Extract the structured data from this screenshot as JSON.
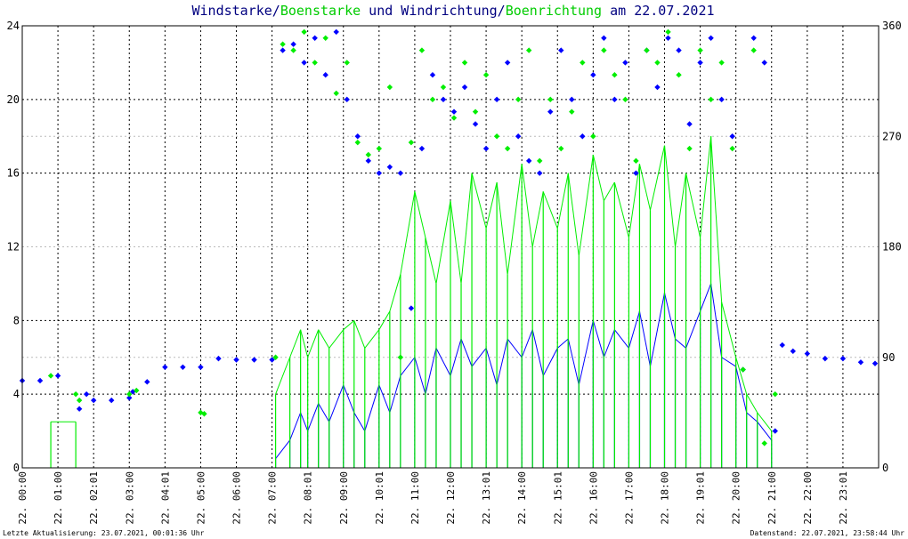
{
  "title": {
    "windstarke": "Windstarke",
    "sep1": "/",
    "boenstarke": "Boenstarke",
    "und": " und ",
    "windrichtung": "Windrichtung",
    "sep2": "/",
    "boenrichtung": "Boenrichtung",
    "am": " am 22.07.2021"
  },
  "footer": {
    "left": "Letzte Aktualisierung: 23.07.2021, 00:01:36 Uhr",
    "right": "Datenstand: 22.07.2021, 23:58:44 Uhr"
  },
  "colors": {
    "wind": "#0000ff",
    "gust": "#00ee00",
    "title_dark": "#000080",
    "title_green": "#00cc00",
    "grid": "#000000",
    "grid_light": "#cccccc"
  },
  "chart_data": {
    "type": "line",
    "y_left": {
      "min": 0,
      "max": 24,
      "ticks": [
        "0",
        "4",
        "8",
        "12",
        "16",
        "20",
        "24"
      ]
    },
    "y_right": {
      "min": 0,
      "max": 360,
      "ticks": [
        "0",
        "90",
        "180",
        "270",
        "360"
      ]
    },
    "x_ticks": [
      "22. 00:00",
      "22. 01:00",
      "22. 02:01",
      "22. 03:00",
      "22. 04:01",
      "22. 05:00",
      "22. 06:00",
      "22. 07:00",
      "22. 08:01",
      "22. 09:00",
      "22. 10:01",
      "22. 11:00",
      "22. 12:00",
      "22. 13:01",
      "22. 14:00",
      "22. 15:01",
      "22. 16:00",
      "22. 17:00",
      "22. 18:00",
      "22. 19:01",
      "22. 20:00",
      "22. 21:00",
      "22. 22:00",
      "22. 23:01"
    ],
    "x_range_hours": [
      0,
      24
    ],
    "series": [
      {
        "name": "Windstarke",
        "kind": "line",
        "x": [
          7.1,
          7.5,
          7.8,
          8.0,
          8.3,
          8.6,
          9.0,
          9.3,
          9.6,
          10.0,
          10.3,
          10.6,
          11.0,
          11.3,
          11.6,
          12.0,
          12.3,
          12.6,
          13.0,
          13.3,
          13.6,
          14.0,
          14.3,
          14.6,
          15.0,
          15.3,
          15.6,
          16.0,
          16.3,
          16.6,
          17.0,
          17.3,
          17.6,
          18.0,
          18.3,
          18.6,
          19.0,
          19.3,
          19.6,
          20.0,
          20.3,
          20.6,
          21.0
        ],
        "y": [
          0.5,
          1.5,
          3.0,
          2.0,
          3.5,
          2.5,
          4.5,
          3.0,
          2.0,
          4.5,
          3.0,
          5.0,
          6.0,
          4.0,
          6.5,
          5.0,
          7.0,
          5.5,
          6.5,
          4.5,
          7.0,
          6.0,
          7.5,
          5.0,
          6.5,
          7.0,
          4.5,
          8.0,
          6.0,
          7.5,
          6.5,
          8.5,
          5.5,
          9.5,
          7.0,
          6.5,
          8.5,
          10.0,
          6.0,
          5.5,
          3.0,
          2.5,
          1.5
        ]
      },
      {
        "name": "Boenstarke",
        "kind": "line",
        "x": [
          0.8,
          1.5,
          7.1,
          7.5,
          7.8,
          8.0,
          8.3,
          8.6,
          9.0,
          9.3,
          9.6,
          10.0,
          10.3,
          10.6,
          11.0,
          11.3,
          11.6,
          12.0,
          12.3,
          12.6,
          13.0,
          13.3,
          13.6,
          14.0,
          14.3,
          14.6,
          15.0,
          15.3,
          15.6,
          16.0,
          16.3,
          16.6,
          17.0,
          17.3,
          17.6,
          18.0,
          18.3,
          18.6,
          19.0,
          19.3,
          19.6,
          20.0,
          20.3,
          20.6,
          21.0
        ],
        "y": [
          2.5,
          2.5,
          4.0,
          6.0,
          7.5,
          6.0,
          7.5,
          6.5,
          7.5,
          8.0,
          6.5,
          7.5,
          8.5,
          10.5,
          15.0,
          12.5,
          10.0,
          14.5,
          10.0,
          16.0,
          13.0,
          15.5,
          10.5,
          16.5,
          12.0,
          15.0,
          13.0,
          16.0,
          11.5,
          17.0,
          14.5,
          15.5,
          12.5,
          16.5,
          14.0,
          17.5,
          12.0,
          16.0,
          12.5,
          18.0,
          9.0,
          6.0,
          4.0,
          3.0,
          2.0
        ]
      },
      {
        "name": "Windrichtung",
        "kind": "points",
        "unit": "deg",
        "x": [
          0.0,
          0.5,
          1.0,
          1.6,
          1.8,
          2.0,
          2.5,
          3.0,
          3.1,
          3.5,
          4.0,
          4.5,
          5.0,
          5.5,
          6.0,
          6.5,
          7.0,
          7.3,
          7.6,
          7.9,
          8.2,
          8.5,
          8.8,
          9.1,
          9.4,
          9.7,
          10.0,
          10.3,
          10.6,
          10.9,
          11.2,
          11.5,
          11.8,
          12.1,
          12.4,
          12.7,
          13.0,
          13.3,
          13.6,
          13.9,
          14.2,
          14.5,
          14.8,
          15.1,
          15.4,
          15.7,
          16.0,
          16.3,
          16.6,
          16.9,
          17.2,
          17.5,
          17.8,
          18.1,
          18.4,
          18.7,
          19.0,
          19.3,
          19.6,
          19.9,
          20.2,
          20.5,
          20.8,
          21.1,
          21.3,
          21.6,
          22.0,
          22.5,
          23.0,
          23.5,
          23.9
        ],
        "y": [
          71,
          71,
          75,
          48,
          60,
          55,
          55,
          57,
          62,
          70,
          82,
          82,
          82,
          89,
          88,
          88,
          88,
          340,
          345,
          330,
          350,
          320,
          355,
          300,
          270,
          250,
          240,
          245,
          240,
          130,
          260,
          320,
          300,
          290,
          310,
          280,
          260,
          300,
          330,
          270,
          250,
          240,
          290,
          340,
          300,
          270,
          320,
          350,
          300,
          330,
          240,
          340,
          310,
          350,
          340,
          280,
          330,
          350,
          300,
          270,
          80,
          350,
          330,
          30,
          100,
          95,
          93,
          89,
          89,
          86,
          85
        ]
      },
      {
        "name": "Boenrichtung",
        "kind": "points",
        "unit": "deg",
        "x": [
          0.8,
          1.5,
          1.6,
          3.0,
          3.2,
          5.0,
          5.1,
          7.1,
          7.3,
          7.6,
          7.9,
          8.2,
          8.5,
          8.8,
          9.1,
          9.4,
          9.7,
          10.0,
          10.3,
          10.6,
          10.9,
          11.2,
          11.5,
          11.8,
          12.1,
          12.4,
          12.7,
          13.0,
          13.3,
          13.6,
          13.9,
          14.2,
          14.5,
          14.8,
          15.1,
          15.4,
          15.7,
          16.0,
          16.3,
          16.6,
          16.9,
          17.2,
          17.5,
          17.8,
          18.1,
          18.4,
          18.7,
          19.0,
          19.3,
          19.6,
          19.9,
          20.2,
          20.5,
          20.8,
          21.1
        ],
        "y": [
          75,
          60,
          55,
          60,
          63,
          45,
          44,
          90,
          345,
          340,
          355,
          330,
          350,
          305,
          330,
          265,
          255,
          260,
          310,
          90,
          265,
          340,
          300,
          310,
          285,
          330,
          290,
          320,
          270,
          260,
          300,
          340,
          250,
          300,
          260,
          290,
          330,
          270,
          340,
          320,
          300,
          250,
          340,
          330,
          355,
          320,
          260,
          340,
          300,
          330,
          260,
          80,
          340,
          20,
          60
        ]
      }
    ]
  }
}
